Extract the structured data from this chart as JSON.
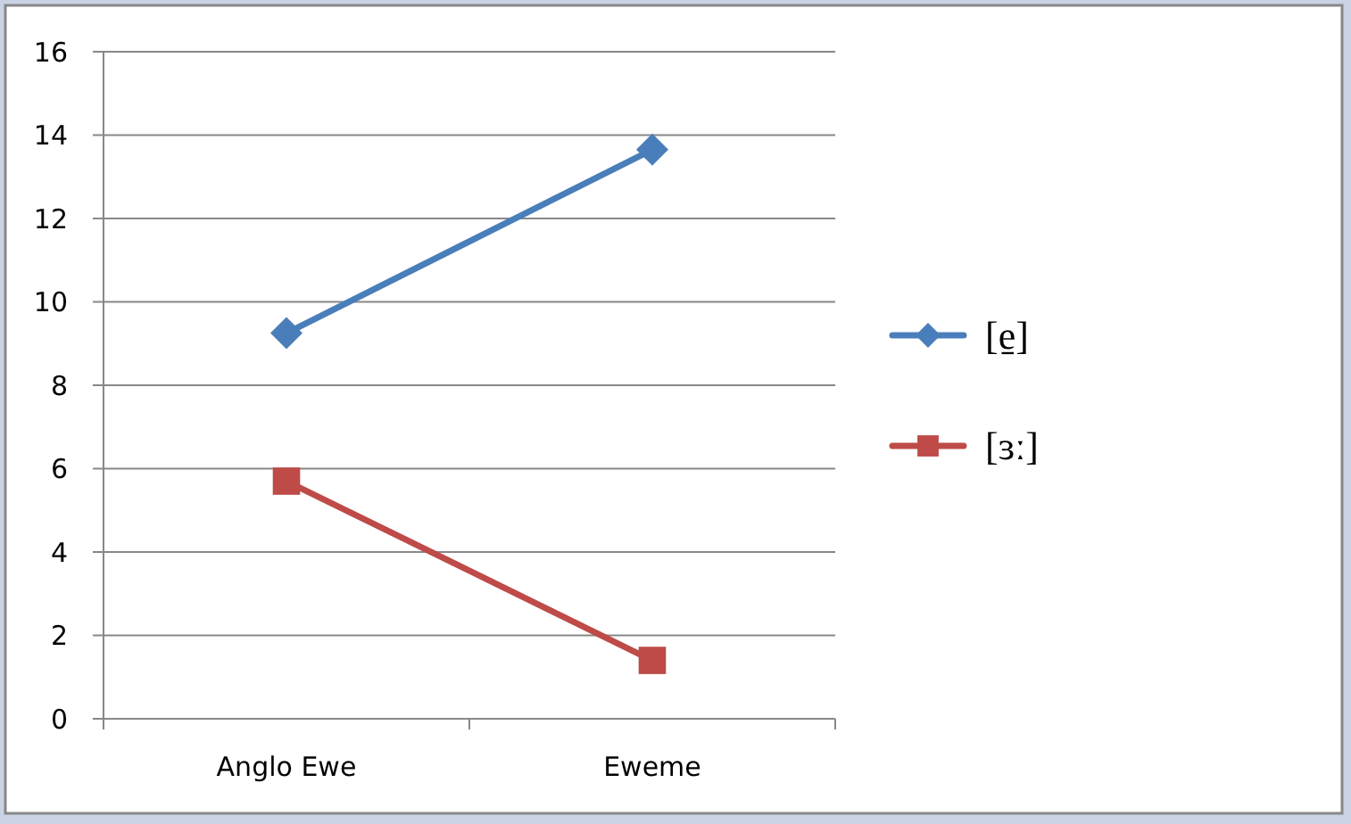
{
  "chart_data": {
    "type": "line",
    "categories": [
      "Anglo Ewe",
      "Eweme"
    ],
    "series": [
      {
        "name": "[e̱]",
        "color": "#4a7ebb",
        "values": [
          9.25,
          13.65
        ],
        "marker": "diamond"
      },
      {
        "name": "[ɜː]",
        "color": "#be4b48",
        "values": [
          5.7,
          1.4
        ],
        "marker": "square"
      }
    ],
    "ylim": [
      0,
      16
    ],
    "yticks": [
      0,
      2,
      4,
      6,
      8,
      10,
      12,
      14,
      16
    ],
    "grid": "y",
    "legend": "right",
    "line_style": "solid"
  }
}
